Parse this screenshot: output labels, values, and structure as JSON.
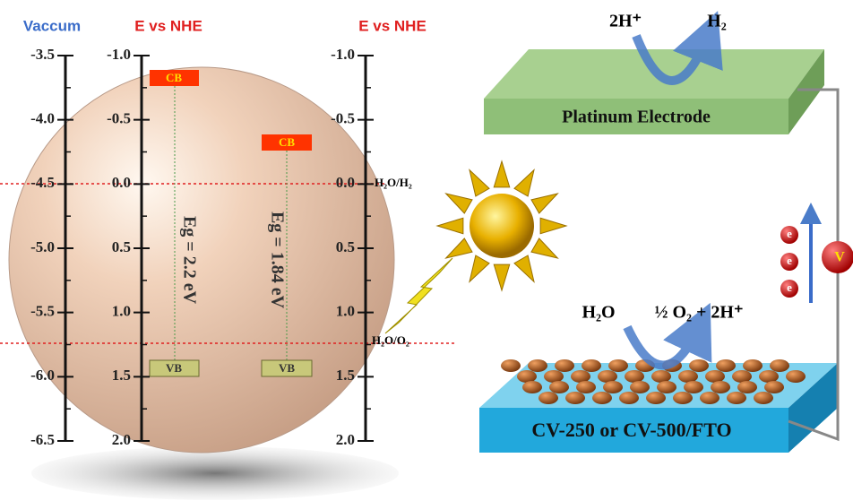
{
  "axes": [
    {
      "title": "Vaccum",
      "ticks": [
        "-3.5",
        "-4.0",
        "-4.5",
        "-5.0",
        "-5.5",
        "-6.0",
        "-6.5"
      ]
    },
    {
      "title": "E vs NHE",
      "ticks": [
        "-1.0",
        "-0.5",
        "0.0",
        "0.5",
        "1.0",
        "1.5",
        "2.0"
      ]
    },
    {
      "title": "E vs NHE",
      "ticks": [
        "-1.0",
        "-0.5",
        "0.0",
        "0.5",
        "1.0",
        "1.5",
        "2.0"
      ]
    }
  ],
  "bands": [
    {
      "cb": "CB",
      "vb": "VB",
      "gap": "Eg = 2.2 eV"
    },
    {
      "cb": "CB",
      "vb": "VB",
      "gap": "Eg = 1.84 eV"
    }
  ],
  "levels": [
    "H₂O/H₂",
    "H₂O/O₂"
  ],
  "cathode": {
    "reactant": "2H⁺",
    "product": "H₂",
    "label": "Platinum Electrode"
  },
  "anode": {
    "reactant": "H₂O",
    "product": "½ O₂ + 2H⁺",
    "label": "CV-250 or CV-500/FTO"
  },
  "electrons": [
    "e",
    "e",
    "e"
  ],
  "meter": "V"
}
